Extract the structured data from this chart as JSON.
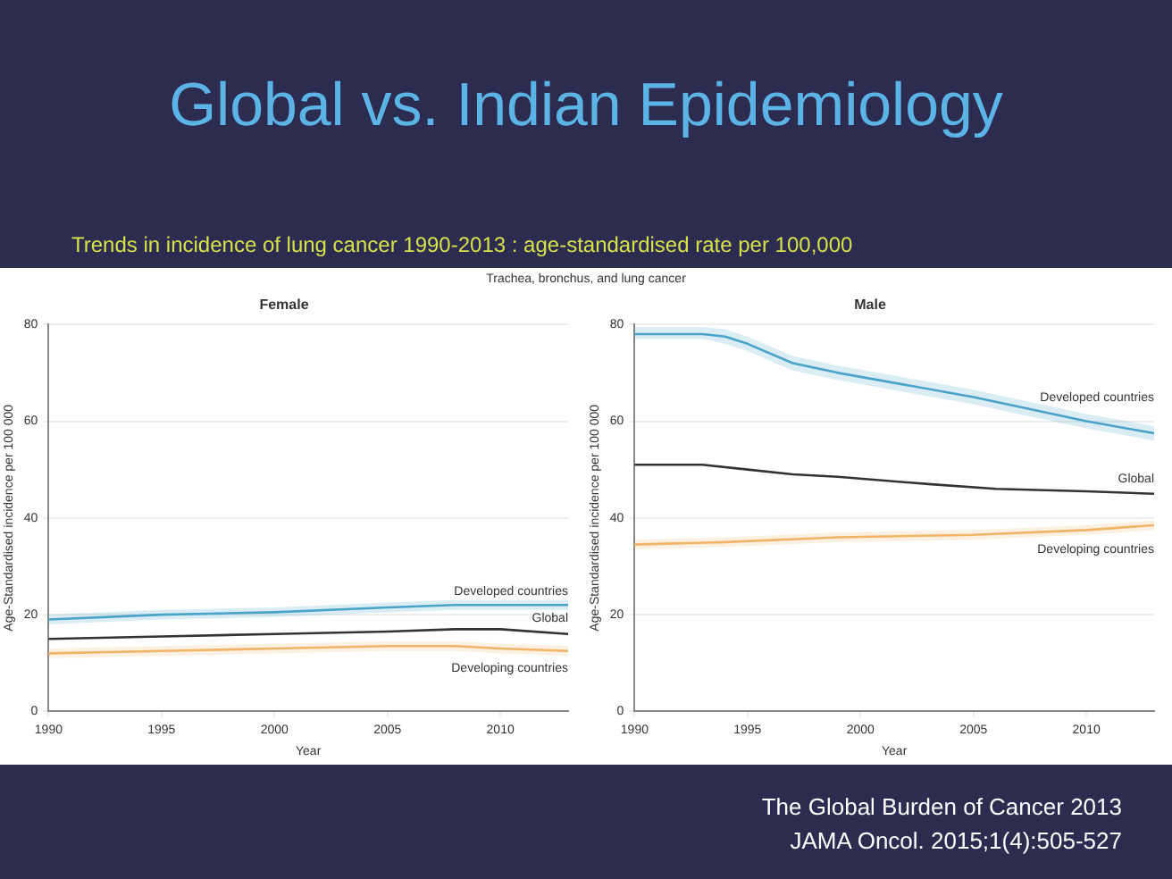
{
  "chart_data": [
    {
      "type": "other",
      "title": "Global vs. Indian Epidemiology",
      "subtitle": "Trends in incidence of lung cancer 1990-2013 : age-standardised rate per 100,000",
      "annotations": [
        "Trachea, bronchus, and lung cancer",
        "The Global Burden of Cancer 2013",
        "JAMA Oncol. 2015;1(4):505-527"
      ]
    },
    {
      "type": "line",
      "title": "Female",
      "xlabel": "Year",
      "ylabel": "Age-Standardised incidence per 100 000",
      "xlim": [
        1990,
        2013
      ],
      "xticks": [
        1990,
        1995,
        2000,
        2005,
        2010
      ],
      "ylim": [
        0,
        80
      ],
      "yticks": [
        0,
        20,
        40,
        60,
        80
      ],
      "grid": "y",
      "legend": false,
      "marker": "none",
      "series": [
        {
          "name": "Developed countries",
          "color": "#4aa3c8",
          "x": [
            1990,
            1995,
            2000,
            2005,
            2008,
            2010,
            2013
          ],
          "values": [
            19,
            20,
            20.5,
            21.5,
            22,
            22,
            22
          ],
          "lower": [
            18,
            19,
            19.5,
            20.5,
            21,
            21,
            21
          ],
          "upper": [
            20,
            21,
            21.5,
            22.5,
            23,
            23,
            23
          ]
        },
        {
          "name": "Global",
          "color": "#333333",
          "x": [
            1990,
            1995,
            2000,
            2005,
            2008,
            2010,
            2013
          ],
          "values": [
            15,
            15.5,
            16,
            16.5,
            17,
            17,
            16
          ]
        },
        {
          "name": "Developing countries",
          "color": "#f0b46a",
          "x": [
            1990,
            1995,
            2000,
            2005,
            2008,
            2010,
            2013
          ],
          "values": [
            12,
            12.5,
            13,
            13.5,
            13.5,
            13,
            12.5
          ],
          "lower": [
            11,
            11.5,
            12,
            12.5,
            12.5,
            12,
            11.5
          ],
          "upper": [
            13,
            13.5,
            14,
            14.5,
            14.5,
            14,
            13.5
          ]
        }
      ]
    },
    {
      "type": "line",
      "title": "Male",
      "xlabel": "Year",
      "ylabel": "Age-Standardised incidence per 100 000",
      "xlim": [
        1990,
        2013
      ],
      "xticks": [
        1990,
        1995,
        2000,
        2005,
        2010
      ],
      "ylim": [
        0,
        80
      ],
      "yticks": [
        0,
        20,
        40,
        60,
        80
      ],
      "grid": "y",
      "legend": false,
      "marker": "none",
      "series": [
        {
          "name": "Developed countries",
          "color": "#4aa3c8",
          "x": [
            1990,
            1993,
            1994,
            1995,
            1997,
            1999,
            2002,
            2005,
            2007,
            2010,
            2013
          ],
          "values": [
            78,
            78,
            77.5,
            76,
            72,
            70,
            67.5,
            65,
            63,
            60,
            57.5
          ],
          "lower": [
            77,
            77,
            76,
            74.5,
            70.5,
            68.5,
            66,
            63.5,
            61.5,
            58.5,
            56
          ],
          "upper": [
            79.5,
            79.5,
            79,
            77.5,
            73.5,
            71.5,
            69,
            66.5,
            64.5,
            61.5,
            59
          ]
        },
        {
          "name": "Global",
          "color": "#333333",
          "x": [
            1990,
            1993,
            1995,
            1997,
            1999,
            2003,
            2006,
            2010,
            2013
          ],
          "values": [
            51,
            51,
            50,
            49,
            48.5,
            47,
            46,
            45.5,
            45
          ]
        },
        {
          "name": "Developing countries",
          "color": "#f0b46a",
          "x": [
            1990,
            1994,
            1999,
            2005,
            2010,
            2013
          ],
          "values": [
            34.5,
            35,
            36,
            36.5,
            37.5,
            38.5
          ],
          "lower": [
            33.5,
            34,
            35,
            35.5,
            36.5,
            37.5
          ],
          "upper": [
            35.5,
            36,
            37,
            37.5,
            38.5,
            39.5
          ]
        }
      ]
    }
  ]
}
